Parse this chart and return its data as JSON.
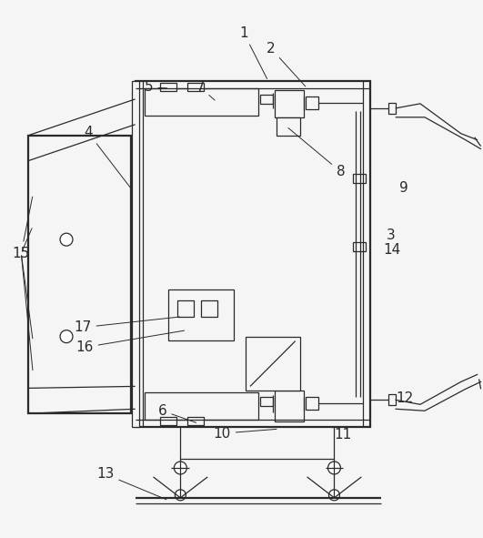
{
  "bg_color": "#f5f5f5",
  "line_color": "#2a2a2a",
  "lw": 0.9,
  "tlw": 1.6,
  "label_fs": 11
}
